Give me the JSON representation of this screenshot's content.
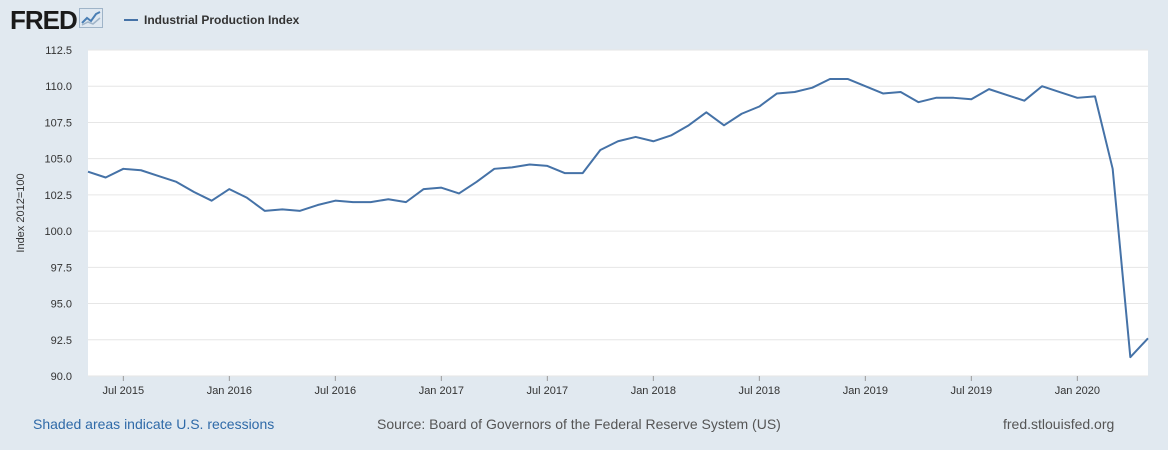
{
  "header": {
    "logo_text": "FRED",
    "logo_icon": "chart-trend-icon",
    "legend_label": "Industrial Production Index"
  },
  "colors": {
    "background": "#e1e9f0",
    "plot_background": "#ffffff",
    "series_line": "#4572a7",
    "gridline": "#e6e6e6",
    "link": "#2f6aa8"
  },
  "footer": {
    "recession_note": "Shaded areas indicate U.S. recessions",
    "source": "Source: Board of Governors of the Federal Reserve System (US)",
    "url": "fred.stlouisfed.org"
  },
  "chart_data": {
    "type": "line",
    "title": "",
    "xlabel": "",
    "ylabel": "Index 2012=100",
    "ylim": [
      90.0,
      112.5
    ],
    "yticks": [
      "90.0",
      "92.5",
      "95.0",
      "97.5",
      "100.0",
      "102.5",
      "105.0",
      "107.5",
      "110.0",
      "112.5"
    ],
    "xticks": [
      {
        "label": "Jul 2015",
        "index": 2
      },
      {
        "label": "Jan 2016",
        "index": 8
      },
      {
        "label": "Jul 2016",
        "index": 14
      },
      {
        "label": "Jan 2017",
        "index": 20
      },
      {
        "label": "Jul 2017",
        "index": 26
      },
      {
        "label": "Jan 2018",
        "index": 32
      },
      {
        "label": "Jul 2018",
        "index": 38
      },
      {
        "label": "Jan 2019",
        "index": 44
      },
      {
        "label": "Jul 2019",
        "index": 50
      },
      {
        "label": "Jan 2020",
        "index": 56
      }
    ],
    "grid": true,
    "legend": "top-left",
    "series": [
      {
        "name": "Industrial Production Index",
        "start": "2015-05",
        "frequency": "monthly",
        "values": [
          104.1,
          103.7,
          104.3,
          104.2,
          103.8,
          103.4,
          102.7,
          102.1,
          102.9,
          102.3,
          101.4,
          101.5,
          101.4,
          101.8,
          102.1,
          102.0,
          102.0,
          102.2,
          102.0,
          102.9,
          103.0,
          102.6,
          103.4,
          104.3,
          104.4,
          104.6,
          104.5,
          104.0,
          104.0,
          105.6,
          106.2,
          106.5,
          106.2,
          106.6,
          107.3,
          108.2,
          107.3,
          108.1,
          108.6,
          109.5,
          109.6,
          109.9,
          110.5,
          110.5,
          110.0,
          109.5,
          109.6,
          108.9,
          109.2,
          109.2,
          109.1,
          109.8,
          109.4,
          109.0,
          110.0,
          109.6,
          109.2,
          109.3,
          104.3,
          91.3,
          92.6
        ]
      }
    ]
  }
}
